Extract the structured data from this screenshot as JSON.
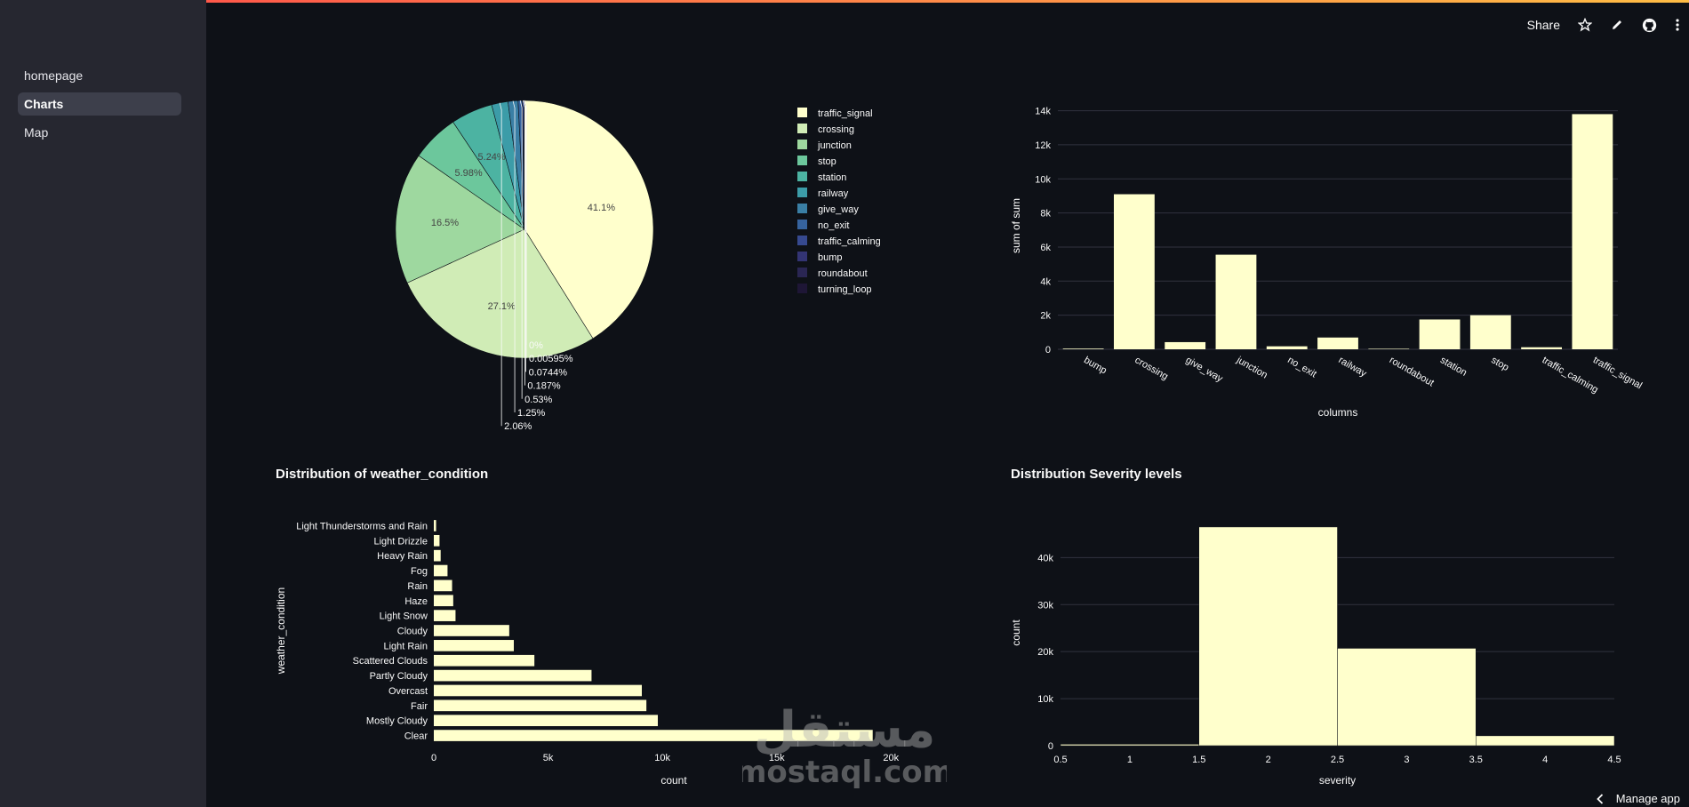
{
  "sidebar": {
    "items": [
      {
        "label": "homepage",
        "active": false
      },
      {
        "label": "Charts",
        "active": true
      },
      {
        "label": "Map",
        "active": false
      }
    ]
  },
  "toolbar": {
    "share_label": "Share",
    "icons": [
      "star-icon",
      "pencil-icon",
      "github-icon",
      "more-vertical-icon"
    ]
  },
  "footer": {
    "manage_label": "Manage app"
  },
  "watermark": {
    "arabic": "مستقل",
    "latin": "mostaql.com"
  },
  "colors": {
    "background": "#0e1117",
    "sidebar": "#262730",
    "bar": "#ffffcc",
    "grid": "#31333f",
    "text": "#fafafa"
  },
  "chart_data": [
    {
      "type": "pie",
      "title": "",
      "legend_placement": "right",
      "slices": [
        {
          "name": "traffic_signal",
          "value": 41.1,
          "color": "#ffffcc",
          "label": "41.1%"
        },
        {
          "name": "crossing",
          "value": 27.1,
          "color": "#d0ecb6",
          "label": "27.1%"
        },
        {
          "name": "junction",
          "value": 16.5,
          "color": "#9ed89f",
          "label": "16.5%"
        },
        {
          "name": "stop",
          "value": 5.98,
          "color": "#6cc79c",
          "label": "5.98%"
        },
        {
          "name": "station",
          "value": 5.24,
          "color": "#4cb3a2",
          "label": "5.24%"
        },
        {
          "name": "railway",
          "value": 2.06,
          "color": "#3c9ca8",
          "label": "2.06%"
        },
        {
          "name": "give_way",
          "value": 1.25,
          "color": "#3a7fa5",
          "label": "1.25%"
        },
        {
          "name": "no_exit",
          "value": 0.53,
          "color": "#36639e",
          "label": "0.53%"
        },
        {
          "name": "traffic_calming",
          "value": 0.187,
          "color": "#36498f",
          "label": "0.187%"
        },
        {
          "name": "bump",
          "value": 0.0744,
          "color": "#333474",
          "label": "0.0744%"
        },
        {
          "name": "roundabout",
          "value": 0.00595,
          "color": "#2a2653",
          "label": "0.00595%"
        },
        {
          "name": "turning_loop",
          "value": 0,
          "color": "#1e1636",
          "label": "0%"
        }
      ]
    },
    {
      "type": "bar",
      "title": "",
      "categories": [
        "bump",
        "crossing",
        "give_way",
        "junction",
        "no_exit",
        "railway",
        "roundabout",
        "station",
        "stop",
        "traffic_calming",
        "traffic_signal"
      ],
      "values": [
        40,
        9100,
        420,
        5550,
        175,
        690,
        30,
        1750,
        2000,
        120,
        13800
      ],
      "xlabel": "columns",
      "ylabel": "sum of sum",
      "ylim": [
        0,
        14500
      ],
      "yticks": [
        0,
        2000,
        4000,
        6000,
        8000,
        10000,
        12000,
        14000
      ],
      "ytick_labels": [
        "0",
        "2k",
        "4k",
        "6k",
        "8k",
        "10k",
        "12k",
        "14k"
      ],
      "grid": true
    },
    {
      "type": "bar",
      "orientation": "horizontal",
      "title": "Distribution of weather_condition",
      "categories": [
        "Light Thunderstorms and Rain",
        "Light Drizzle",
        "Heavy Rain",
        "Fog",
        "Rain",
        "Haze",
        "Light Snow",
        "Cloudy",
        "Light Rain",
        "Scattered Clouds",
        "Partly Cloudy",
        "Overcast",
        "Fair",
        "Mostly Cloudy",
        "Clear"
      ],
      "values": [
        100,
        250,
        300,
        600,
        800,
        850,
        950,
        3300,
        3500,
        4400,
        6900,
        9100,
        9300,
        9800,
        19200
      ],
      "xlabel": "count",
      "ylabel": "weather_condition",
      "xlim": [
        0,
        21000
      ],
      "xticks": [
        0,
        5000,
        10000,
        15000,
        20000
      ],
      "xtick_labels": [
        "0",
        "5k",
        "10k",
        "15k",
        "20k"
      ],
      "grid": false
    },
    {
      "type": "bar",
      "subtype": "histogram",
      "title": "Distribution Severity levels",
      "bins": [
        {
          "start": 0.5,
          "end": 1.5,
          "value": 300
        },
        {
          "start": 1.5,
          "end": 2.5,
          "value": 46500
        },
        {
          "start": 2.5,
          "end": 3.5,
          "value": 20700
        },
        {
          "start": 3.5,
          "end": 4.5,
          "value": 2100
        }
      ],
      "xlabel": "severity",
      "ylabel": "count",
      "xlim": [
        0.5,
        4.5
      ],
      "xticks": [
        0.5,
        1,
        1.5,
        2,
        2.5,
        3,
        3.5,
        4,
        4.5
      ],
      "xtick_labels": [
        "0.5",
        "1",
        "1.5",
        "2",
        "2.5",
        "3",
        "3.5",
        "4",
        "4.5"
      ],
      "ylim": [
        0,
        48000
      ],
      "yticks": [
        0,
        10000,
        20000,
        30000,
        40000
      ],
      "ytick_labels": [
        "0",
        "10k",
        "20k",
        "30k",
        "40k"
      ],
      "grid": true
    }
  ]
}
